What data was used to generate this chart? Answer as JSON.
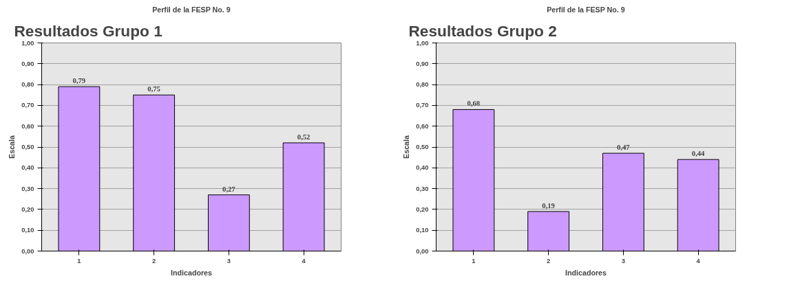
{
  "chart_data": [
    {
      "type": "bar",
      "title": "Resultados Grupo 1",
      "subtitle": "Perfil de la FESP No. 9",
      "xlabel": "Indicadores",
      "ylabel": "Escala",
      "categories": [
        "1",
        "2",
        "3",
        "4"
      ],
      "values": [
        0.79,
        0.75,
        0.27,
        0.52
      ],
      "value_labels": [
        "0,79",
        "0,75",
        "0,27",
        "0,52"
      ],
      "color": "#cc99ff",
      "ylim": [
        0,
        1
      ],
      "yticks": [
        {
          "value": 0,
          "label": "0,00"
        },
        {
          "value": 0.1,
          "label": "0,10"
        },
        {
          "value": 0.2,
          "label": "0,20"
        },
        {
          "value": 0.3,
          "label": "0,30"
        },
        {
          "value": 0.4,
          "label": "0,40"
        },
        {
          "value": 0.5,
          "label": "0,50"
        },
        {
          "value": 0.6,
          "label": "0,60"
        },
        {
          "value": 0.7,
          "label": "0,70"
        },
        {
          "value": 0.8,
          "label": "0,80"
        },
        {
          "value": 0.9,
          "label": "0,90"
        },
        {
          "value": 1,
          "label": "1,00"
        }
      ],
      "grid": "y"
    },
    {
      "type": "bar",
      "title": "Resultados Grupo 2",
      "subtitle": "Perfil de la FESP No. 9",
      "xlabel": "Indicadores",
      "ylabel": "Escala",
      "categories": [
        "1",
        "2",
        "3",
        "4"
      ],
      "values": [
        0.68,
        0.19,
        0.47,
        0.44
      ],
      "value_labels": [
        "0,68",
        "0,19",
        "0,47",
        "0,44"
      ],
      "color": "#cc99ff",
      "ylim": [
        0,
        1
      ],
      "yticks": [
        {
          "value": 0,
          "label": "0,00"
        },
        {
          "value": 0.1,
          "label": "0,10"
        },
        {
          "value": 0.2,
          "label": "0,20"
        },
        {
          "value": 0.3,
          "label": "0,30"
        },
        {
          "value": 0.4,
          "label": "0,40"
        },
        {
          "value": 0.5,
          "label": "0,50"
        },
        {
          "value": 0.6,
          "label": "0,60"
        },
        {
          "value": 0.7,
          "label": "0,70"
        },
        {
          "value": 0.8,
          "label": "0,80"
        },
        {
          "value": 0.9,
          "label": "0,90"
        },
        {
          "value": 1,
          "label": "1,00"
        }
      ],
      "grid": "y"
    }
  ]
}
